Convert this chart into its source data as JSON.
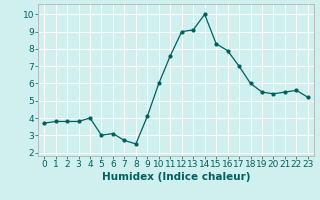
{
  "x": [
    0,
    1,
    2,
    3,
    4,
    5,
    6,
    7,
    8,
    9,
    10,
    11,
    12,
    13,
    14,
    15,
    16,
    17,
    18,
    19,
    20,
    21,
    22,
    23
  ],
  "y": [
    3.7,
    3.8,
    3.8,
    3.8,
    4.0,
    3.0,
    3.1,
    2.7,
    2.5,
    4.1,
    6.0,
    7.6,
    9.0,
    9.1,
    10.0,
    8.3,
    7.9,
    7.0,
    6.0,
    5.5,
    5.4,
    5.5,
    5.6,
    5.2
  ],
  "line_color": "#006060",
  "marker_color": "#006060",
  "bg_color": "#d0efef",
  "grid_color": "#ffffff",
  "xlabel": "Humidex (Indice chaleur)",
  "xlim": [
    -0.5,
    23.5
  ],
  "ylim": [
    1.8,
    10.6
  ],
  "yticks": [
    2,
    3,
    4,
    5,
    6,
    7,
    8,
    9,
    10
  ],
  "xlabel_fontsize": 7.5,
  "tick_fontsize": 6.5
}
